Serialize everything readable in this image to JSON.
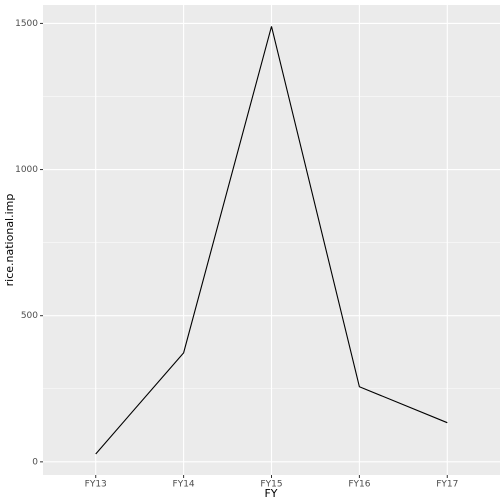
{
  "chart_data": {
    "type": "line",
    "categories": [
      "FY13",
      "FY14",
      "FY15",
      "FY16",
      "FY17"
    ],
    "values": [
      27,
      373,
      1490,
      257,
      134
    ],
    "color": "#000000",
    "x_label": "FY",
    "y_label": "rice.national.imp",
    "ylim": [
      -45,
      1563
    ],
    "yticks": [
      0,
      500,
      1000,
      1500
    ],
    "grid": true
  }
}
